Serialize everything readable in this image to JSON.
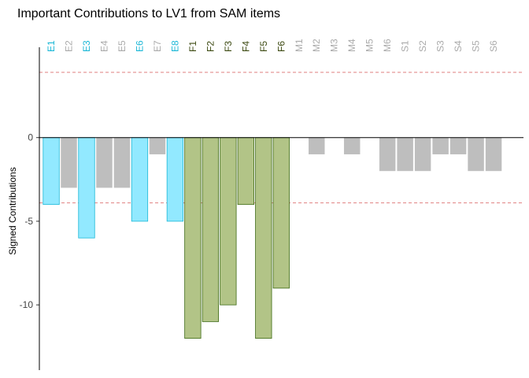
{
  "chart_data": {
    "type": "bar",
    "title": "Important Contributions to LV1 from SAM items",
    "y_label": "Signed Contributions",
    "categories": [
      "E1",
      "E2",
      "E3",
      "E4",
      "E5",
      "E6",
      "E7",
      "E8",
      "F1",
      "F2",
      "F3",
      "F4",
      "F5",
      "F6",
      "M1",
      "M2",
      "M3",
      "M4",
      "M5",
      "M6",
      "S1",
      "S2",
      "S3",
      "S4",
      "S5",
      "S6"
    ],
    "values": [
      -4,
      -3,
      -6,
      -3,
      -3,
      -5,
      -1,
      -5,
      -12,
      -11,
      -10,
      -4,
      -12,
      -9,
      0,
      -1,
      0,
      -1,
      0,
      -2,
      -2,
      -2,
      -1,
      -1,
      -2,
      -2
    ],
    "colors": [
      "#92e9ff",
      "#bebebe",
      "#92e9ff",
      "#bebebe",
      "#bebebe",
      "#92e9ff",
      "#bebebe",
      "#92e9ff",
      "#b2c487",
      "#b2c487",
      "#b2c487",
      "#b2c487",
      "#b2c487",
      "#b2c487",
      "#bebebe",
      "#bebebe",
      "#bebebe",
      "#bebebe",
      "#bebebe",
      "#bebebe",
      "#bebebe",
      "#bebebe",
      "#bebebe",
      "#bebebe",
      "#bebebe",
      "#bebebe"
    ],
    "label_colors": [
      "#1ab7d6",
      "#aaaaaa",
      "#1ab7d6",
      "#aaaaaa",
      "#aaaaaa",
      "#1ab7d6",
      "#aaaaaa",
      "#1ab7d6",
      "#3d4a12",
      "#3d4a12",
      "#3d4a12",
      "#3d4a12",
      "#3d4a12",
      "#3d4a12",
      "#aaaaaa",
      "#aaaaaa",
      "#aaaaaa",
      "#aaaaaa",
      "#aaaaaa",
      "#aaaaaa",
      "#aaaaaa",
      "#aaaaaa",
      "#aaaaaa",
      "#aaaaaa",
      "#aaaaaa",
      "#aaaaaa"
    ],
    "thresholds": [
      3.9,
      -3.9
    ],
    "ylim": [
      -13.9,
      5.4
    ],
    "yticks": [
      0,
      -5,
      -10
    ]
  }
}
